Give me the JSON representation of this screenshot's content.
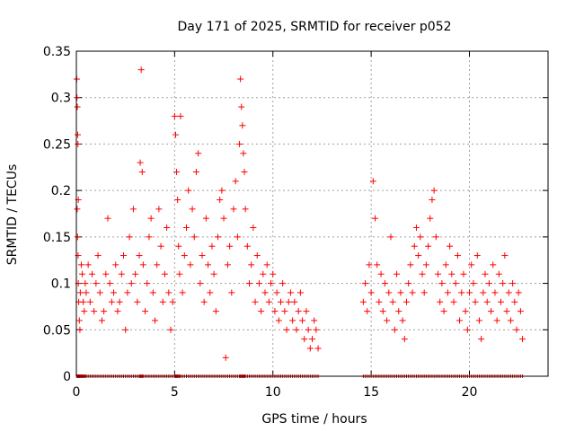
{
  "chart_data": {
    "type": "scatter",
    "title": "Day 171 of 2025, SRMTID for receiver p052",
    "xlabel": "GPS time / hours",
    "ylabel": "SRMTID / TECUs",
    "xlim": [
      0,
      24
    ],
    "ylim": [
      0,
      0.35
    ],
    "xticks": [
      0,
      5,
      10,
      15,
      20
    ],
    "xtick_labels": [
      "0",
      "5",
      "10",
      "15",
      "20"
    ],
    "yticks": [
      0,
      0.05,
      0.1,
      0.15,
      0.2,
      0.25,
      0.3,
      0.35
    ],
    "ytick_labels": [
      "0",
      "0.05",
      "0.1",
      "0.15",
      "0.2",
      "0.25",
      "0.3",
      "0.35"
    ],
    "grid": true,
    "marker": "+",
    "color": "#ff0000",
    "series": [
      {
        "name": "SRMTID",
        "points": [
          [
            0.02,
            0.32
          ],
          [
            0.03,
            0.3
          ],
          [
            0.05,
            0.29
          ],
          [
            0.07,
            0.26
          ],
          [
            0.08,
            0.25
          ],
          [
            0.1,
            0.19
          ],
          [
            0.04,
            0.18
          ],
          [
            0.06,
            0.15
          ],
          [
            0.09,
            0.13
          ],
          [
            0.1,
            0.1
          ],
          [
            0.12,
            0.08
          ],
          [
            0.15,
            0.06
          ],
          [
            0.18,
            0.05
          ],
          [
            0.2,
            0.09
          ],
          [
            0.25,
            0.12
          ],
          [
            0.3,
            0.11
          ],
          [
            0.35,
            0.08
          ],
          [
            0.4,
            0.07
          ],
          [
            0.45,
            0.1
          ],
          [
            0.5,
            0.09
          ],
          [
            0.6,
            0.12
          ],
          [
            0.7,
            0.08
          ],
          [
            0.8,
            0.11
          ],
          [
            0.9,
            0.07
          ],
          [
            1.0,
            0.1
          ],
          [
            1.1,
            0.13
          ],
          [
            1.2,
            0.09
          ],
          [
            1.3,
            0.06
          ],
          [
            1.4,
            0.07
          ],
          [
            1.5,
            0.11
          ],
          [
            1.6,
            0.17
          ],
          [
            1.7,
            0.1
          ],
          [
            1.8,
            0.08
          ],
          [
            1.9,
            0.09
          ],
          [
            2.0,
            0.12
          ],
          [
            2.1,
            0.07
          ],
          [
            2.2,
            0.08
          ],
          [
            2.3,
            0.11
          ],
          [
            2.4,
            0.13
          ],
          [
            2.5,
            0.05
          ],
          [
            2.6,
            0.09
          ],
          [
            2.7,
            0.15
          ],
          [
            2.8,
            0.1
          ],
          [
            2.9,
            0.18
          ],
          [
            3.0,
            0.11
          ],
          [
            3.1,
            0.08
          ],
          [
            3.2,
            0.13
          ],
          [
            3.25,
            0.23
          ],
          [
            3.3,
            0.33
          ],
          [
            3.35,
            0.22
          ],
          [
            3.4,
            0.12
          ],
          [
            3.5,
            0.07
          ],
          [
            3.6,
            0.1
          ],
          [
            3.7,
            0.15
          ],
          [
            3.8,
            0.17
          ],
          [
            3.9,
            0.09
          ],
          [
            4.0,
            0.06
          ],
          [
            4.1,
            0.12
          ],
          [
            4.2,
            0.18
          ],
          [
            4.3,
            0.14
          ],
          [
            4.4,
            0.08
          ],
          [
            4.5,
            0.11
          ],
          [
            4.6,
            0.16
          ],
          [
            4.7,
            0.09
          ],
          [
            4.8,
            0.05
          ],
          [
            4.9,
            0.08
          ],
          [
            5.0,
            0.28
          ],
          [
            5.05,
            0.26
          ],
          [
            5.1,
            0.22
          ],
          [
            5.15,
            0.19
          ],
          [
            5.2,
            0.14
          ],
          [
            5.3,
            0.28
          ],
          [
            5.25,
            0.11
          ],
          [
            5.4,
            0.09
          ],
          [
            5.5,
            0.13
          ],
          [
            5.6,
            0.16
          ],
          [
            5.7,
            0.2
          ],
          [
            5.8,
            0.12
          ],
          [
            5.9,
            0.18
          ],
          [
            6.0,
            0.15
          ],
          [
            6.1,
            0.22
          ],
          [
            6.2,
            0.24
          ],
          [
            6.3,
            0.1
          ],
          [
            6.4,
            0.13
          ],
          [
            6.5,
            0.08
          ],
          [
            6.6,
            0.17
          ],
          [
            6.7,
            0.12
          ],
          [
            6.8,
            0.09
          ],
          [
            6.9,
            0.14
          ],
          [
            7.0,
            0.11
          ],
          [
            7.1,
            0.07
          ],
          [
            7.2,
            0.15
          ],
          [
            7.3,
            0.19
          ],
          [
            7.4,
            0.2
          ],
          [
            7.5,
            0.17
          ],
          [
            7.6,
            0.02
          ],
          [
            7.7,
            0.12
          ],
          [
            7.8,
            0.14
          ],
          [
            7.9,
            0.09
          ],
          [
            8.0,
            0.18
          ],
          [
            8.1,
            0.21
          ],
          [
            8.2,
            0.15
          ],
          [
            8.3,
            0.25
          ],
          [
            8.35,
            0.32
          ],
          [
            8.4,
            0.29
          ],
          [
            8.45,
            0.27
          ],
          [
            8.5,
            0.24
          ],
          [
            8.55,
            0.22
          ],
          [
            8.6,
            0.18
          ],
          [
            8.7,
            0.14
          ],
          [
            8.8,
            0.1
          ],
          [
            8.9,
            0.12
          ],
          [
            9.0,
            0.16
          ],
          [
            9.1,
            0.08
          ],
          [
            9.2,
            0.13
          ],
          [
            9.3,
            0.1
          ],
          [
            9.4,
            0.07
          ],
          [
            9.5,
            0.11
          ],
          [
            9.6,
            0.09
          ],
          [
            9.7,
            0.12
          ],
          [
            9.8,
            0.08
          ],
          [
            9.9,
            0.1
          ],
          [
            10.0,
            0.11
          ],
          [
            10.1,
            0.07
          ],
          [
            10.2,
            0.09
          ],
          [
            10.3,
            0.06
          ],
          [
            10.4,
            0.08
          ],
          [
            10.5,
            0.1
          ],
          [
            10.6,
            0.07
          ],
          [
            10.7,
            0.05
          ],
          [
            10.8,
            0.08
          ],
          [
            10.9,
            0.09
          ],
          [
            11.0,
            0.06
          ],
          [
            11.1,
            0.08
          ],
          [
            11.2,
            0.05
          ],
          [
            11.3,
            0.07
          ],
          [
            11.4,
            0.09
          ],
          [
            11.5,
            0.06
          ],
          [
            11.6,
            0.04
          ],
          [
            11.7,
            0.07
          ],
          [
            11.8,
            0.05
          ],
          [
            11.9,
            0.03
          ],
          [
            12.0,
            0.04
          ],
          [
            12.1,
            0.06
          ],
          [
            12.2,
            0.05
          ],
          [
            12.3,
            0.03
          ],
          [
            14.6,
            0.08
          ],
          [
            14.7,
            0.1
          ],
          [
            14.8,
            0.07
          ],
          [
            14.9,
            0.12
          ],
          [
            15.0,
            0.09
          ],
          [
            15.1,
            0.21
          ],
          [
            15.2,
            0.17
          ],
          [
            15.3,
            0.12
          ],
          [
            15.4,
            0.08
          ],
          [
            15.5,
            0.11
          ],
          [
            15.6,
            0.07
          ],
          [
            15.7,
            0.1
          ],
          [
            15.8,
            0.06
          ],
          [
            15.9,
            0.09
          ],
          [
            16.0,
            0.15
          ],
          [
            16.1,
            0.08
          ],
          [
            16.2,
            0.05
          ],
          [
            16.3,
            0.11
          ],
          [
            16.4,
            0.07
          ],
          [
            16.5,
            0.09
          ],
          [
            16.6,
            0.06
          ],
          [
            16.7,
            0.04
          ],
          [
            16.8,
            0.08
          ],
          [
            16.9,
            0.1
          ],
          [
            17.0,
            0.12
          ],
          [
            17.1,
            0.09
          ],
          [
            17.2,
            0.14
          ],
          [
            17.3,
            0.16
          ],
          [
            17.4,
            0.13
          ],
          [
            17.5,
            0.15
          ],
          [
            17.6,
            0.11
          ],
          [
            17.7,
            0.09
          ],
          [
            17.8,
            0.12
          ],
          [
            17.9,
            0.14
          ],
          [
            18.0,
            0.17
          ],
          [
            18.1,
            0.19
          ],
          [
            18.2,
            0.2
          ],
          [
            18.3,
            0.15
          ],
          [
            18.4,
            0.11
          ],
          [
            18.5,
            0.08
          ],
          [
            18.6,
            0.1
          ],
          [
            18.7,
            0.07
          ],
          [
            18.8,
            0.12
          ],
          [
            18.9,
            0.09
          ],
          [
            19.0,
            0.14
          ],
          [
            19.1,
            0.11
          ],
          [
            19.2,
            0.08
          ],
          [
            19.3,
            0.1
          ],
          [
            19.4,
            0.13
          ],
          [
            19.5,
            0.06
          ],
          [
            19.6,
            0.09
          ],
          [
            19.7,
            0.11
          ],
          [
            19.8,
            0.07
          ],
          [
            19.9,
            0.05
          ],
          [
            20.0,
            0.09
          ],
          [
            20.1,
            0.12
          ],
          [
            20.2,
            0.1
          ],
          [
            20.3,
            0.08
          ],
          [
            20.4,
            0.13
          ],
          [
            20.5,
            0.06
          ],
          [
            20.6,
            0.04
          ],
          [
            20.7,
            0.09
          ],
          [
            20.8,
            0.11
          ],
          [
            20.9,
            0.08
          ],
          [
            21.0,
            0.1
          ],
          [
            21.1,
            0.07
          ],
          [
            21.2,
            0.12
          ],
          [
            21.3,
            0.09
          ],
          [
            21.4,
            0.06
          ],
          [
            21.5,
            0.11
          ],
          [
            21.6,
            0.08
          ],
          [
            21.7,
            0.1
          ],
          [
            21.8,
            0.13
          ],
          [
            21.9,
            0.07
          ],
          [
            22.0,
            0.09
          ],
          [
            22.1,
            0.06
          ],
          [
            22.2,
            0.1
          ],
          [
            22.3,
            0.08
          ],
          [
            22.4,
            0.05
          ],
          [
            22.5,
            0.09
          ],
          [
            22.6,
            0.07
          ],
          [
            22.7,
            0.04
          ]
        ]
      }
    ]
  }
}
